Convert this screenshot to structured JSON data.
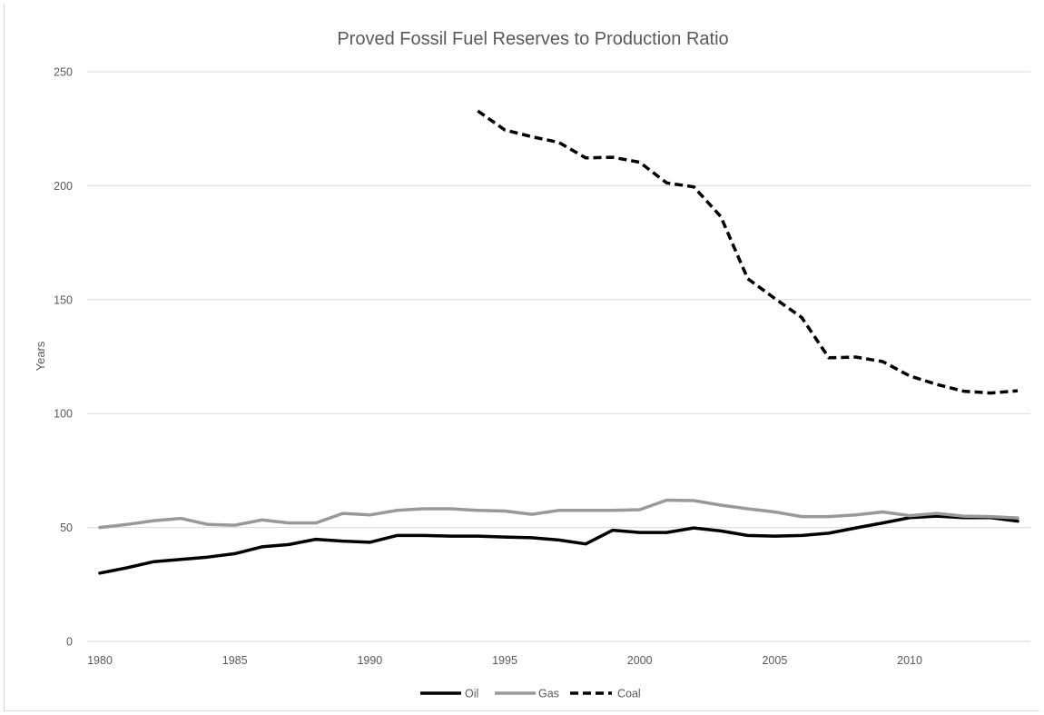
{
  "chart_data": {
    "type": "line",
    "title": "Proved Fossil Fuel Reserves to Production Ratio",
    "xlabel": "",
    "ylabel": "Years",
    "ylim": [
      0,
      250
    ],
    "y_ticks": [
      0,
      50,
      100,
      150,
      200,
      250
    ],
    "xlim": [
      1980,
      2014
    ],
    "x_ticks": [
      1980,
      1985,
      1990,
      1995,
      2000,
      2005,
      2010
    ],
    "grid": "horizontal",
    "legend_position": "bottom",
    "x": [
      1980,
      1981,
      1982,
      1983,
      1984,
      1985,
      1986,
      1987,
      1988,
      1989,
      1990,
      1991,
      1992,
      1993,
      1994,
      1995,
      1996,
      1997,
      1998,
      1999,
      2000,
      2001,
      2002,
      2003,
      2004,
      2005,
      2006,
      2007,
      2008,
      2009,
      2010,
      2011,
      2012,
      2013,
      2014
    ],
    "series": [
      {
        "name": "Oil",
        "color": "#000000",
        "dash": "solid",
        "values": [
          30,
          32.3,
          35,
          36,
          37,
          38.5,
          41.5,
          42.5,
          44.8,
          44,
          43.5,
          46.5,
          46.5,
          46.2,
          46.2,
          45.8,
          45.5,
          44.5,
          42.8,
          48.8,
          47.8,
          47.8,
          49.8,
          48.5,
          46.5,
          46.2,
          46.5,
          47.5,
          49.8,
          52,
          54.3,
          55,
          54.3,
          54.3,
          52.8
        ]
      },
      {
        "name": "Gas",
        "color": "#999999",
        "dash": "solid",
        "values": [
          50,
          51.3,
          53,
          54,
          51.3,
          51,
          53.3,
          52,
          52,
          56.2,
          55.5,
          57.5,
          58.2,
          58.2,
          57.5,
          57.2,
          55.8,
          57.5,
          57.5,
          57.5,
          57.8,
          62,
          61.8,
          59.8,
          58.2,
          56.8,
          54.8,
          54.8,
          55.5,
          56.8,
          55.2,
          56.2,
          55,
          54.8,
          54.2
        ]
      },
      {
        "name": "Coal",
        "color": "#000000",
        "dash": "dashed",
        "values": [
          null,
          null,
          null,
          null,
          null,
          null,
          null,
          null,
          null,
          null,
          null,
          null,
          null,
          null,
          232.8,
          224.5,
          221.5,
          219,
          212.2,
          212.5,
          210.3,
          201.2,
          199.5,
          186.5,
          159.2,
          150.5,
          142.2,
          124.5,
          124.8,
          122.8,
          116.5,
          112.8,
          109.8,
          109,
          110
        ]
      }
    ]
  }
}
